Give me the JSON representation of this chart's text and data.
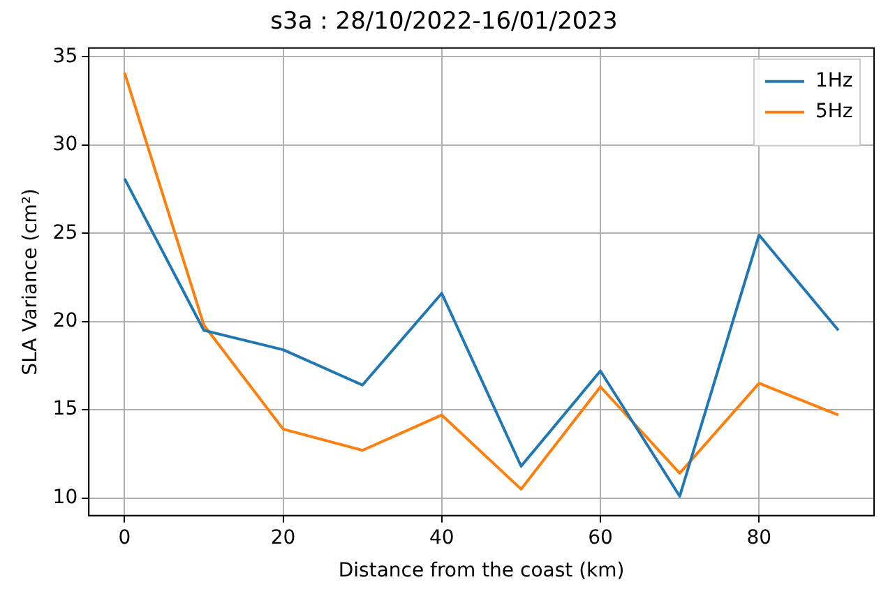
{
  "chart_data": {
    "type": "line",
    "title": "s3a : 28/10/2022-16/01/2023",
    "xlabel": "Distance from the coast (km)",
    "ylabel": "SLA Variance (cm²)",
    "x": [
      0,
      10,
      20,
      30,
      40,
      50,
      60,
      70,
      80,
      90
    ],
    "series": [
      {
        "name": "1Hz",
        "color": "#1f77b4",
        "values": [
          28.1,
          19.5,
          18.4,
          16.4,
          21.6,
          11.8,
          17.2,
          10.1,
          24.9,
          19.5
        ]
      },
      {
        "name": "5Hz",
        "color": "#ff7f0e",
        "values": [
          34.1,
          19.8,
          13.9,
          12.7,
          14.7,
          10.5,
          16.3,
          11.4,
          16.5,
          14.7
        ]
      }
    ],
    "xlim": [
      -4.5,
      94.5
    ],
    "xticks": [
      0,
      20,
      40,
      60,
      80
    ],
    "ylim": [
      9,
      35.5
    ],
    "yticks": [
      10,
      15,
      20,
      25,
      30,
      35
    ],
    "grid": true,
    "legend": "top right",
    "marker": "none",
    "line_style": "solid"
  }
}
